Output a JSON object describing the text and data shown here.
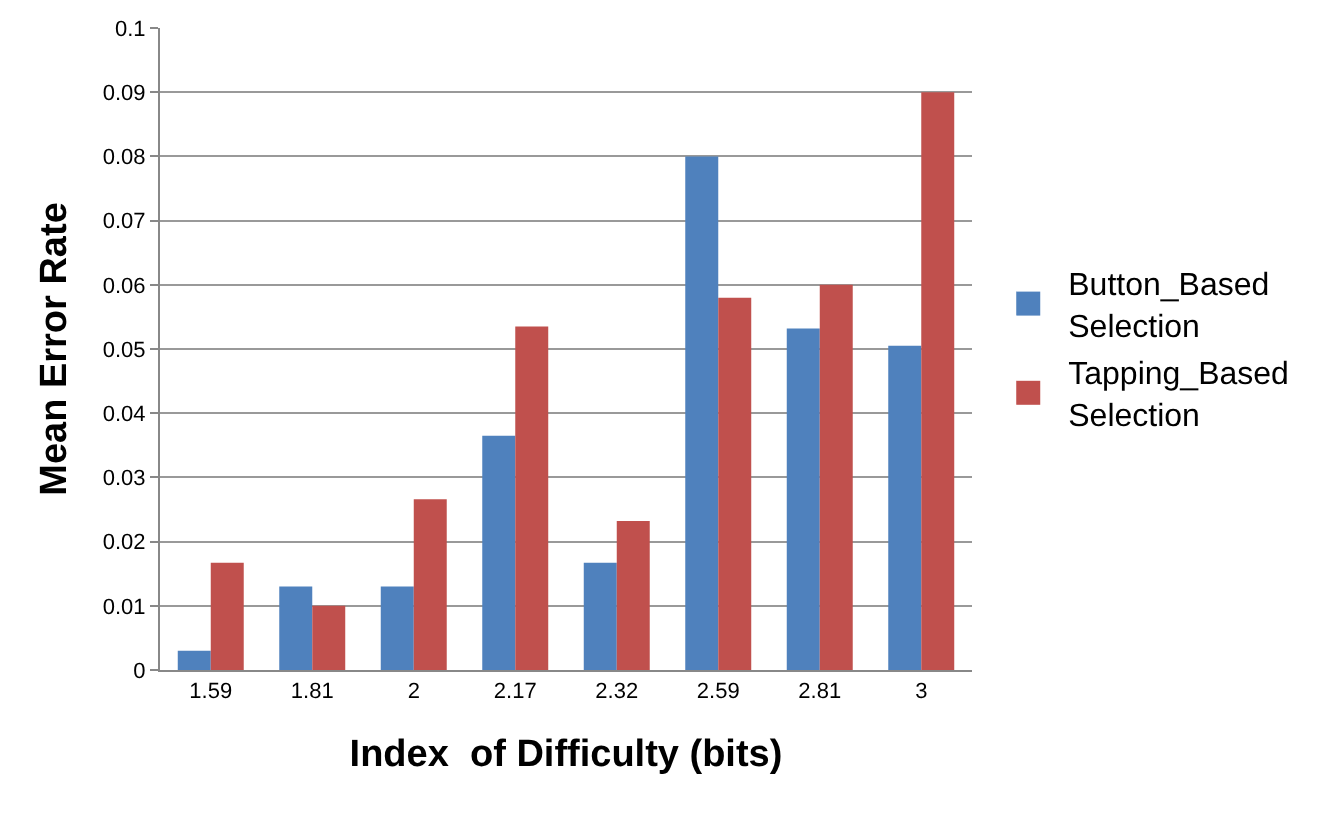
{
  "chart_data": {
    "type": "bar",
    "xlabel": "Index  of Difficulty (bits)",
    "ylabel": "Mean Error Rate",
    "categories": [
      "1.59",
      "1.81",
      "2",
      "2.17",
      "2.32",
      "2.59",
      "2.81",
      "3"
    ],
    "series": [
      {
        "name": "Button_Based Selection",
        "color": "#4f81bd",
        "values": [
          0.003,
          0.013,
          0.013,
          0.0365,
          0.0167,
          0.08,
          0.0532,
          0.0505
        ]
      },
      {
        "name": "Tapping_Based Selection",
        "color": "#c0504d",
        "values": [
          0.0167,
          0.01,
          0.0266,
          0.0535,
          0.0232,
          0.058,
          0.06,
          0.09
        ]
      }
    ],
    "ylim": [
      0,
      0.1
    ],
    "yticks": [
      0,
      0.01,
      0.02,
      0.03,
      0.04,
      0.05,
      0.06,
      0.07,
      0.08,
      0.09,
      0.1
    ],
    "grid": "y",
    "legend": "right"
  }
}
